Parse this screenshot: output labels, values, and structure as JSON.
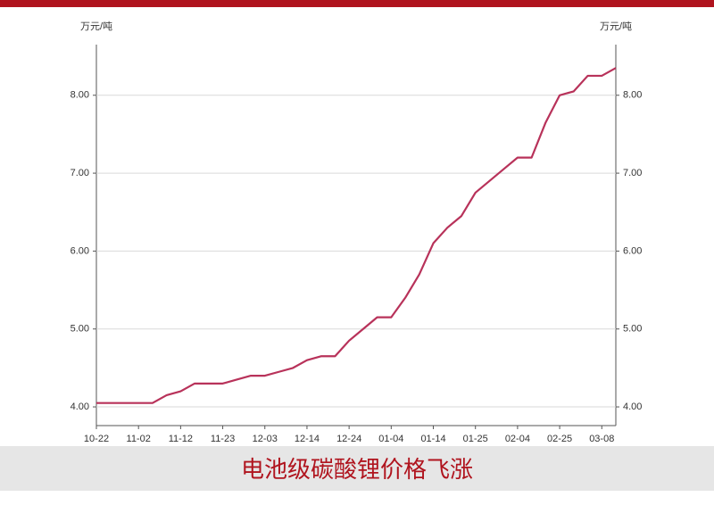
{
  "chart_data": {
    "type": "line",
    "title": "电池级碳酸锂价格飞涨",
    "y_unit": "万元/吨",
    "y2_unit": "万元/吨",
    "categories": [
      "10-22",
      null,
      null,
      "11-02",
      null,
      null,
      "11-12",
      null,
      null,
      "11-23",
      null,
      null,
      "12-03",
      null,
      null,
      "12-14",
      null,
      null,
      "12-24",
      null,
      null,
      "01-04",
      null,
      null,
      "01-14",
      null,
      null,
      "01-25",
      null,
      null,
      "02-04",
      null,
      null,
      "02-25",
      null,
      null,
      "03-08",
      null
    ],
    "series": [
      {
        "color": "#b8325a",
        "values": [
          4.05,
          4.05,
          4.05,
          4.05,
          4.05,
          4.15,
          4.2,
          4.3,
          4.3,
          4.3,
          4.35,
          4.4,
          4.4,
          4.45,
          4.5,
          4.6,
          4.65,
          4.65,
          4.85,
          5.0,
          5.15,
          5.15,
          5.4,
          5.7,
          6.1,
          6.3,
          6.45,
          6.75,
          6.9,
          7.05,
          7.2,
          7.2,
          7.65,
          8.0,
          8.05,
          8.25,
          8.25,
          8.35
        ]
      }
    ],
    "ylim": [
      3.76,
      8.65
    ],
    "yticks": [
      {
        "value": 4,
        "label": "4.00"
      },
      {
        "value": 5,
        "label": "5.00"
      },
      {
        "value": 6,
        "label": "6.00"
      },
      {
        "value": 7,
        "label": "7.00"
      },
      {
        "value": 8,
        "label": "8.00"
      }
    ],
    "y2lim": [
      3.76,
      8.65
    ],
    "y2ticks": [
      {
        "value": 4,
        "label": "4.00"
      },
      {
        "value": 5,
        "label": "5.00"
      },
      {
        "value": 6,
        "label": "6.00"
      },
      {
        "value": 7,
        "label": "7.00"
      },
      {
        "value": 8,
        "label": "8.00"
      }
    ],
    "grid": true
  }
}
